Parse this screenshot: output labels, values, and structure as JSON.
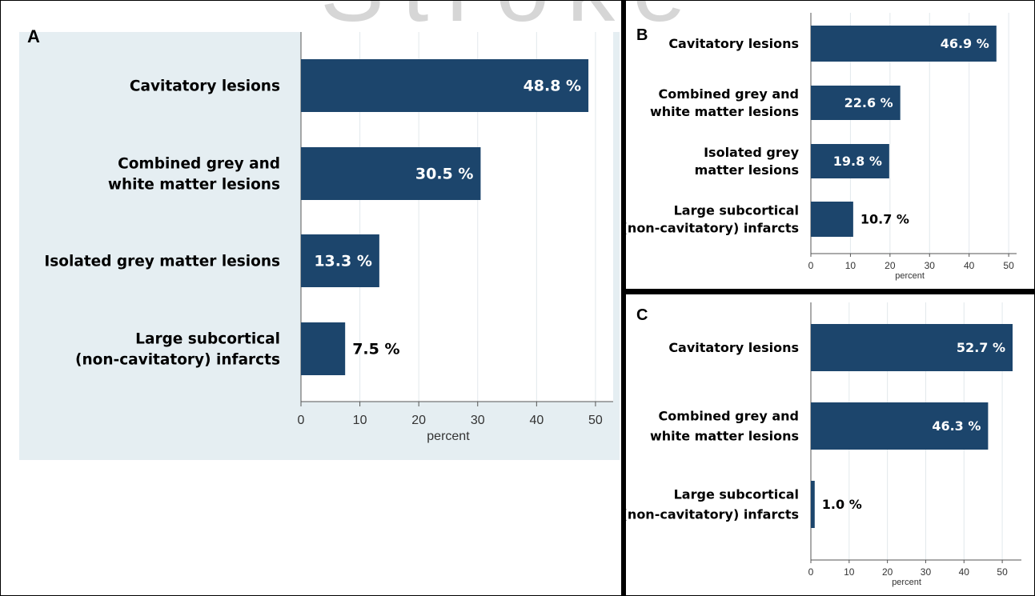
{
  "watermark": "Stroke",
  "colors": {
    "bar": "#1c456c",
    "panel_bg": "#e5eef2",
    "plot_bg": "#ffffff",
    "grid": "#e2e8ec",
    "divider": "#000000"
  },
  "chart_data": [
    {
      "panel": "A",
      "type": "bar",
      "orientation": "horizontal",
      "categories": [
        "Cavitatory lesions",
        "Combined grey and white matter lesions",
        "Isolated grey matter lesions",
        "Large subcortical (non-cavitatory) infarcts"
      ],
      "category_lines": [
        [
          "Cavitatory lesions"
        ],
        [
          "Combined grey and",
          "white matter lesions"
        ],
        [
          "Isolated grey matter lesions"
        ],
        [
          "Large subcortical",
          "(non-cavitatory) infarcts"
        ]
      ],
      "values": [
        48.8,
        30.5,
        13.3,
        7.5
      ],
      "value_labels": [
        "48.8 %",
        "30.5 %",
        "13.3 %",
        "7.5 %"
      ],
      "xlabel": "percent",
      "xticks": [
        "0",
        "10",
        "20",
        "30",
        "40",
        "50"
      ],
      "xlim": [
        0,
        53
      ],
      "grid": true,
      "background": "shaded"
    },
    {
      "panel": "B",
      "type": "bar",
      "orientation": "horizontal",
      "categories": [
        "Cavitatory lesions",
        "Combined grey and white matter lesions",
        "Isolated grey matter lesions",
        "Large subcortical (non-cavitatory) infarcts"
      ],
      "category_lines": [
        [
          "Cavitatory lesions"
        ],
        [
          "Combined grey and",
          "white matter lesions"
        ],
        [
          "Isolated grey",
          "matter lesions"
        ],
        [
          "Large subcortical",
          "(non-cavitatory) infarcts"
        ]
      ],
      "values": [
        46.9,
        22.6,
        19.8,
        10.7
      ],
      "value_labels": [
        "46.9 %",
        "22.6 %",
        "19.8 %",
        "10.7 %"
      ],
      "xlabel": "percent",
      "xticks": [
        "0",
        "10",
        "20",
        "30",
        "40",
        "50"
      ],
      "xlim": [
        0,
        52
      ],
      "grid": true,
      "background": "white"
    },
    {
      "panel": "C",
      "type": "bar",
      "orientation": "horizontal",
      "categories": [
        "Cavitatory lesions",
        "Combined grey and white matter lesions",
        "Large subcortical (non-cavitatory) infarcts"
      ],
      "category_lines": [
        [
          "Cavitatory lesions"
        ],
        [
          "Combined grey and",
          "white matter lesions"
        ],
        [
          "Large subcortical",
          "(non-cavitatory) infarcts"
        ]
      ],
      "values": [
        52.7,
        46.3,
        1.0
      ],
      "value_labels": [
        "52.7 %",
        "46.3 %",
        "1.0 %"
      ],
      "xlabel": "percent",
      "xticks": [
        "0",
        "10",
        "20",
        "30",
        "40",
        "50"
      ],
      "xlim": [
        0,
        55
      ],
      "grid": true,
      "background": "white"
    }
  ]
}
